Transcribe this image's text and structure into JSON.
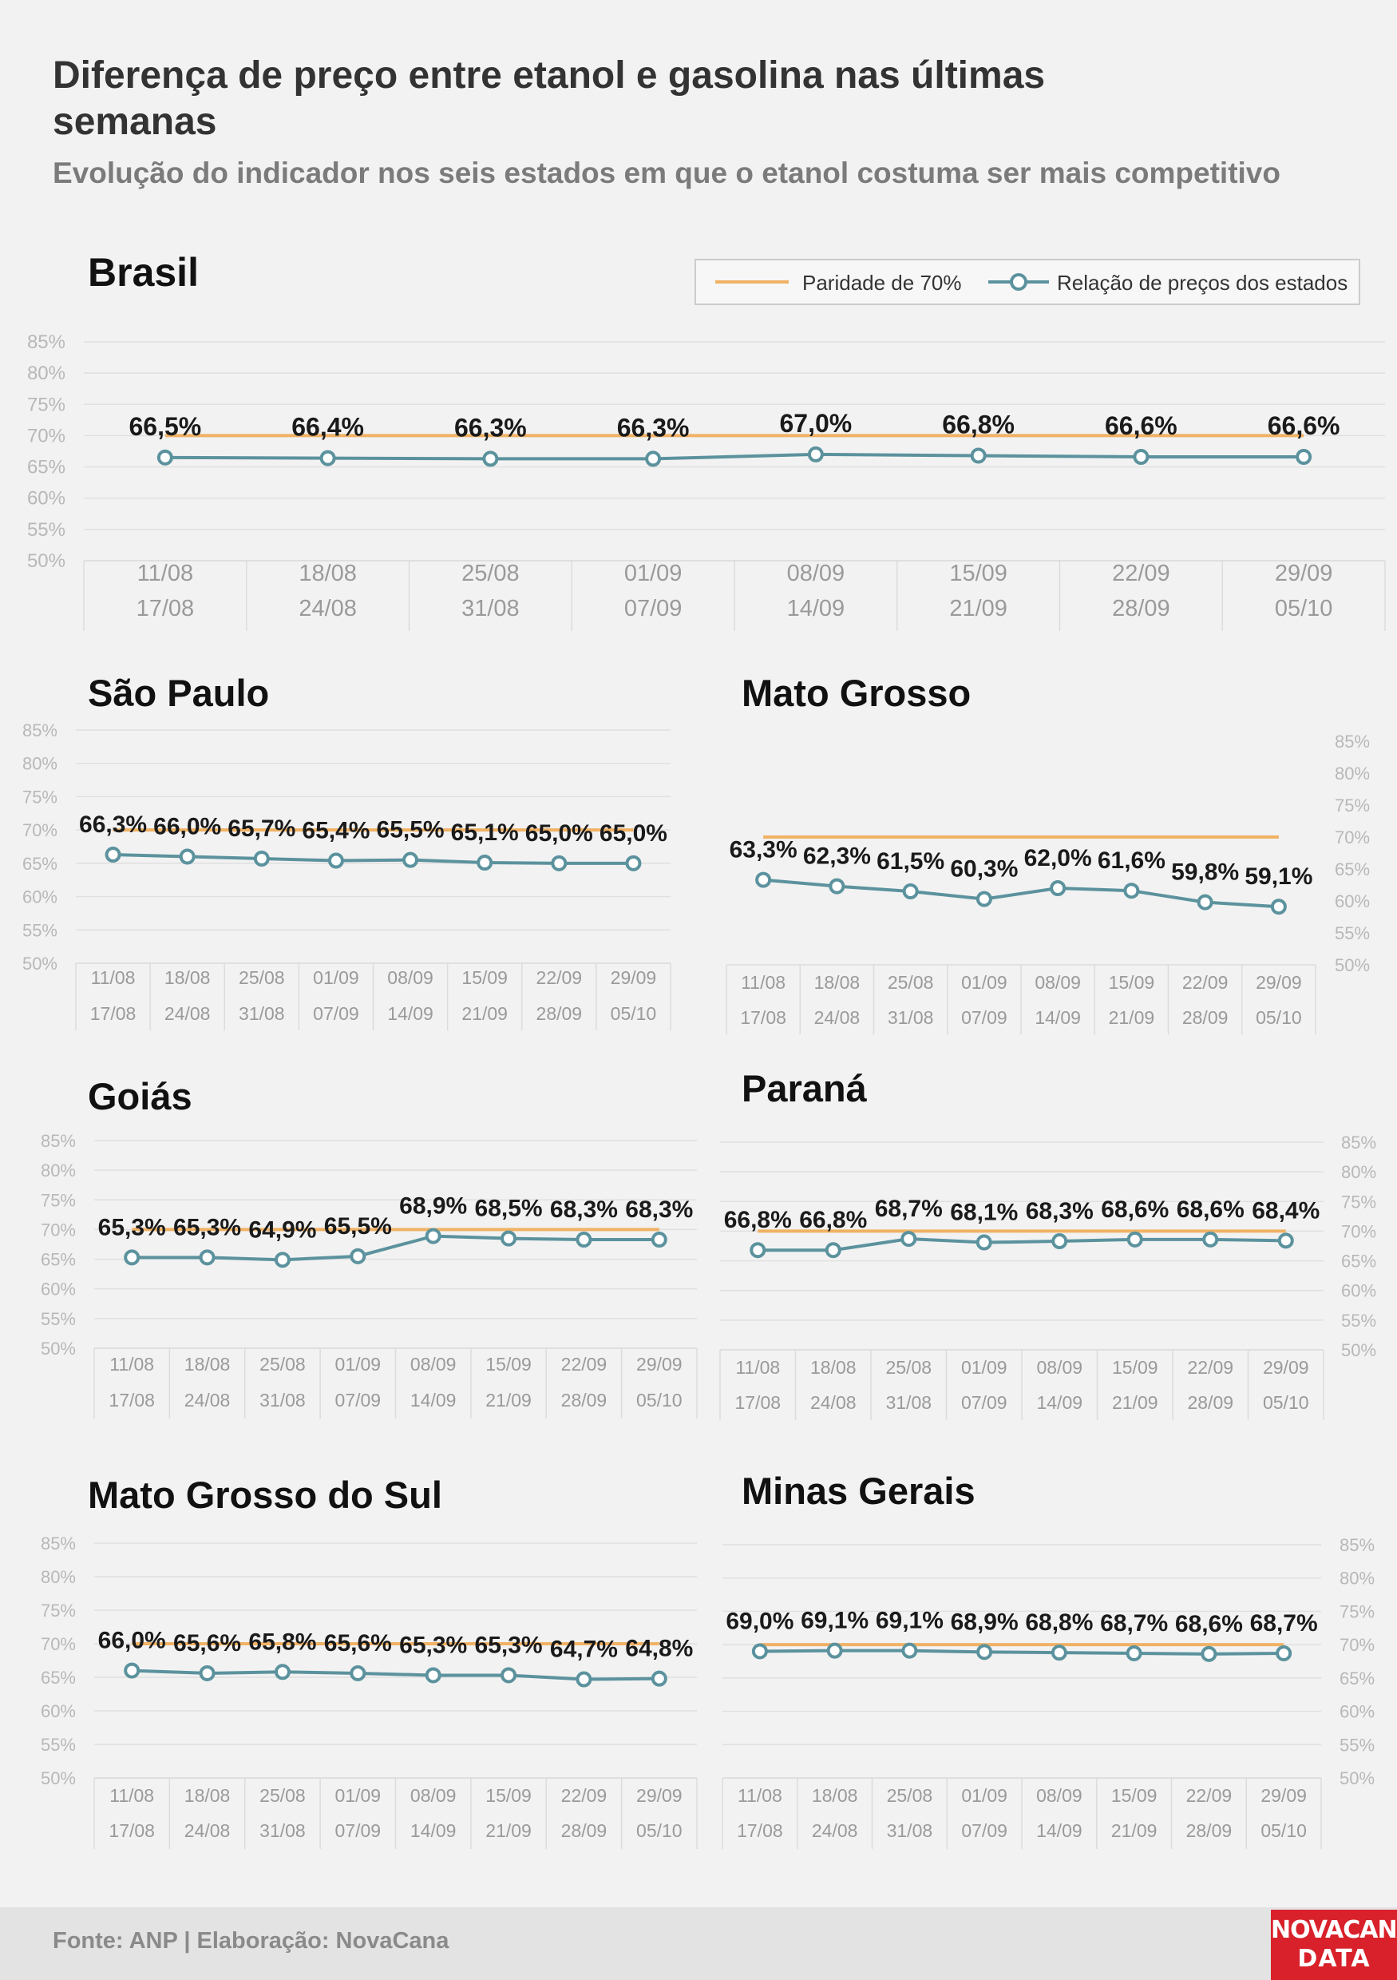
{
  "header": {
    "title": "Diferença de preço entre etanol e gasolina nas últimas semanas",
    "subtitle": "Evolução do indicador nos seis estados em que o etanol costuma ser mais competitivo"
  },
  "footer": {
    "source": "Fonte: ANP | Elaboração: NovaCana",
    "logo_line1": "NOVACANA",
    "logo_line2": "DATA"
  },
  "legend": {
    "parity_label": "Paridade de 70%",
    "ratio_label": "Relação de preços dos estados"
  },
  "colors": {
    "parity": "#f0b265",
    "ratio": "#5b929d",
    "label": "#1a1a1a",
    "axis_text": "#b8b8b8",
    "grid": "#e0e0e0"
  },
  "chart_data": [
    {
      "type": "line",
      "title": "Brasil",
      "categories": [
        "11/08\n17/08",
        "18/08\n24/08",
        "25/08\n31/08",
        "01/09\n07/09",
        "08/09\n14/09",
        "15/09\n21/09",
        "22/09\n28/09",
        "29/09\n05/10"
      ],
      "series": [
        {
          "name": "Paridade de 70%",
          "values": [
            70,
            70,
            70,
            70,
            70,
            70,
            70,
            70
          ]
        },
        {
          "name": "Relação de preços dos estados",
          "values": [
            66.5,
            66.4,
            66.3,
            66.3,
            67.0,
            66.8,
            66.6,
            66.6
          ]
        }
      ],
      "data_labels": [
        "66,5%",
        "66,4%",
        "66,3%",
        "66,3%",
        "67,0%",
        "66,8%",
        "66,6%",
        "66,6%"
      ],
      "yticks": [
        "85%",
        "80%",
        "75%",
        "70%",
        "65%",
        "60%",
        "55%",
        "50%"
      ],
      "ylim": [
        50,
        85
      ],
      "y_axis_side": "left",
      "legend": "top-right",
      "grid": true
    },
    {
      "type": "line",
      "title": "São Paulo",
      "categories": [
        "11/08\n17/08",
        "18/08\n24/08",
        "25/08\n31/08",
        "01/09\n07/09",
        "08/09\n14/09",
        "15/09\n21/09",
        "22/09\n28/09",
        "29/09\n05/10"
      ],
      "series": [
        {
          "name": "Paridade de 70%",
          "values": [
            70,
            70,
            70,
            70,
            70,
            70,
            70,
            70
          ]
        },
        {
          "name": "Relação de preços dos estados",
          "values": [
            66.3,
            66.0,
            65.7,
            65.4,
            65.5,
            65.1,
            65.0,
            65.0
          ]
        }
      ],
      "data_labels": [
        "66,3%",
        "66,0%",
        "65,7%",
        "65,4%",
        "65,5%",
        "65,1%",
        "65,0%",
        "65,0%"
      ],
      "yticks": [
        "85%",
        "80%",
        "75%",
        "70%",
        "65%",
        "60%",
        "55%",
        "50%"
      ],
      "ylim": [
        50,
        85
      ],
      "y_axis_side": "left",
      "grid": true
    },
    {
      "type": "line",
      "title": "Mato Grosso",
      "categories": [
        "11/08\n17/08",
        "18/08\n24/08",
        "25/08\n31/08",
        "01/09\n07/09",
        "08/09\n14/09",
        "15/09\n21/09",
        "22/09\n28/09",
        "29/09\n05/10"
      ],
      "series": [
        {
          "name": "Paridade de 70%",
          "values": [
            70,
            70,
            70,
            70,
            70,
            70,
            70,
            70
          ]
        },
        {
          "name": "Relação de preços dos estados",
          "values": [
            63.3,
            62.3,
            61.5,
            60.3,
            62.0,
            61.6,
            59.8,
            59.1
          ]
        }
      ],
      "data_labels": [
        "63,3%",
        "62,3%",
        "61,5%",
        "60,3%",
        "62,0%",
        "61,6%",
        "59,8%",
        "59,1%"
      ],
      "yticks": [
        "85%",
        "80%",
        "75%",
        "70%",
        "65%",
        "60%",
        "55%",
        "50%"
      ],
      "ylim": [
        50,
        85
      ],
      "y_axis_side": "right",
      "grid": false
    },
    {
      "type": "line",
      "title": "Goiás",
      "categories": [
        "11/08\n17/08",
        "18/08\n24/08",
        "25/08\n31/08",
        "01/09\n07/09",
        "08/09\n14/09",
        "15/09\n21/09",
        "22/09\n28/09",
        "29/09\n05/10"
      ],
      "series": [
        {
          "name": "Paridade de 70%",
          "values": [
            70,
            70,
            70,
            70,
            70,
            70,
            70,
            70
          ]
        },
        {
          "name": "Relação de preços dos estados",
          "values": [
            65.3,
            65.3,
            64.9,
            65.5,
            68.9,
            68.5,
            68.3,
            68.3
          ]
        }
      ],
      "data_labels": [
        "65,3%",
        "65,3%",
        "64,9%",
        "65,5%",
        "68,9%",
        "68,5%",
        "68,3%",
        "68,3%"
      ],
      "yticks": [
        "85%",
        "80%",
        "75%",
        "70%",
        "65%",
        "60%",
        "55%",
        "50%"
      ],
      "ylim": [
        50,
        85
      ],
      "y_axis_side": "left",
      "grid": true
    },
    {
      "type": "line",
      "title": "Paraná",
      "categories": [
        "11/08\n17/08",
        "18/08\n24/08",
        "25/08\n31/08",
        "01/09\n07/09",
        "08/09\n14/09",
        "15/09\n21/09",
        "22/09\n28/09",
        "29/09\n05/10"
      ],
      "series": [
        {
          "name": "Paridade de 70%",
          "values": [
            70,
            70,
            70,
            70,
            70,
            70,
            70,
            70
          ]
        },
        {
          "name": "Relação de preços dos estados",
          "values": [
            66.8,
            66.8,
            68.7,
            68.1,
            68.3,
            68.6,
            68.6,
            68.4
          ]
        }
      ],
      "data_labels": [
        "66,8%",
        "66,8%",
        "68,7%",
        "68,1%",
        "68,3%",
        "68,6%",
        "68,6%",
        "68,4%"
      ],
      "yticks": [
        "85%",
        "80%",
        "75%",
        "70%",
        "65%",
        "60%",
        "55%",
        "50%"
      ],
      "ylim": [
        50,
        85
      ],
      "y_axis_side": "right",
      "grid": true
    },
    {
      "type": "line",
      "title": "Mato Grosso do Sul",
      "categories": [
        "11/08\n17/08",
        "18/08\n24/08",
        "25/08\n31/08",
        "01/09\n07/09",
        "08/09\n14/09",
        "15/09\n21/09",
        "22/09\n28/09",
        "29/09\n05/10"
      ],
      "series": [
        {
          "name": "Paridade de 70%",
          "values": [
            70,
            70,
            70,
            70,
            70,
            70,
            70,
            70
          ]
        },
        {
          "name": "Relação de preços dos estados",
          "values": [
            66.0,
            65.6,
            65.8,
            65.6,
            65.3,
            65.3,
            64.7,
            64.8
          ]
        }
      ],
      "data_labels": [
        "66,0%",
        "65,6%",
        "65,8%",
        "65,6%",
        "65,3%",
        "65,3%",
        "64,7%",
        "64,8%"
      ],
      "yticks": [
        "85%",
        "80%",
        "75%",
        "70%",
        "65%",
        "60%",
        "55%",
        "50%"
      ],
      "ylim": [
        50,
        85
      ],
      "y_axis_side": "left",
      "grid": true
    },
    {
      "type": "line",
      "title": "Minas Gerais",
      "categories": [
        "11/08\n17/08",
        "18/08\n24/08",
        "25/08\n31/08",
        "01/09\n07/09",
        "08/09\n14/09",
        "15/09\n21/09",
        "22/09\n28/09",
        "29/09\n05/10"
      ],
      "series": [
        {
          "name": "Paridade de 70%",
          "values": [
            70,
            70,
            70,
            70,
            70,
            70,
            70,
            70
          ]
        },
        {
          "name": "Relação de preços dos estados",
          "values": [
            69.0,
            69.1,
            69.1,
            68.9,
            68.8,
            68.7,
            68.6,
            68.7
          ]
        }
      ],
      "data_labels": [
        "69,0%",
        "69,1%",
        "69,1%",
        "68,9%",
        "68,8%",
        "68,7%",
        "68,6%",
        "68,7%"
      ],
      "yticks": [
        "85%",
        "80%",
        "75%",
        "70%",
        "65%",
        "60%",
        "55%",
        "50%"
      ],
      "ylim": [
        50,
        85
      ],
      "y_axis_side": "right",
      "grid": true
    }
  ]
}
